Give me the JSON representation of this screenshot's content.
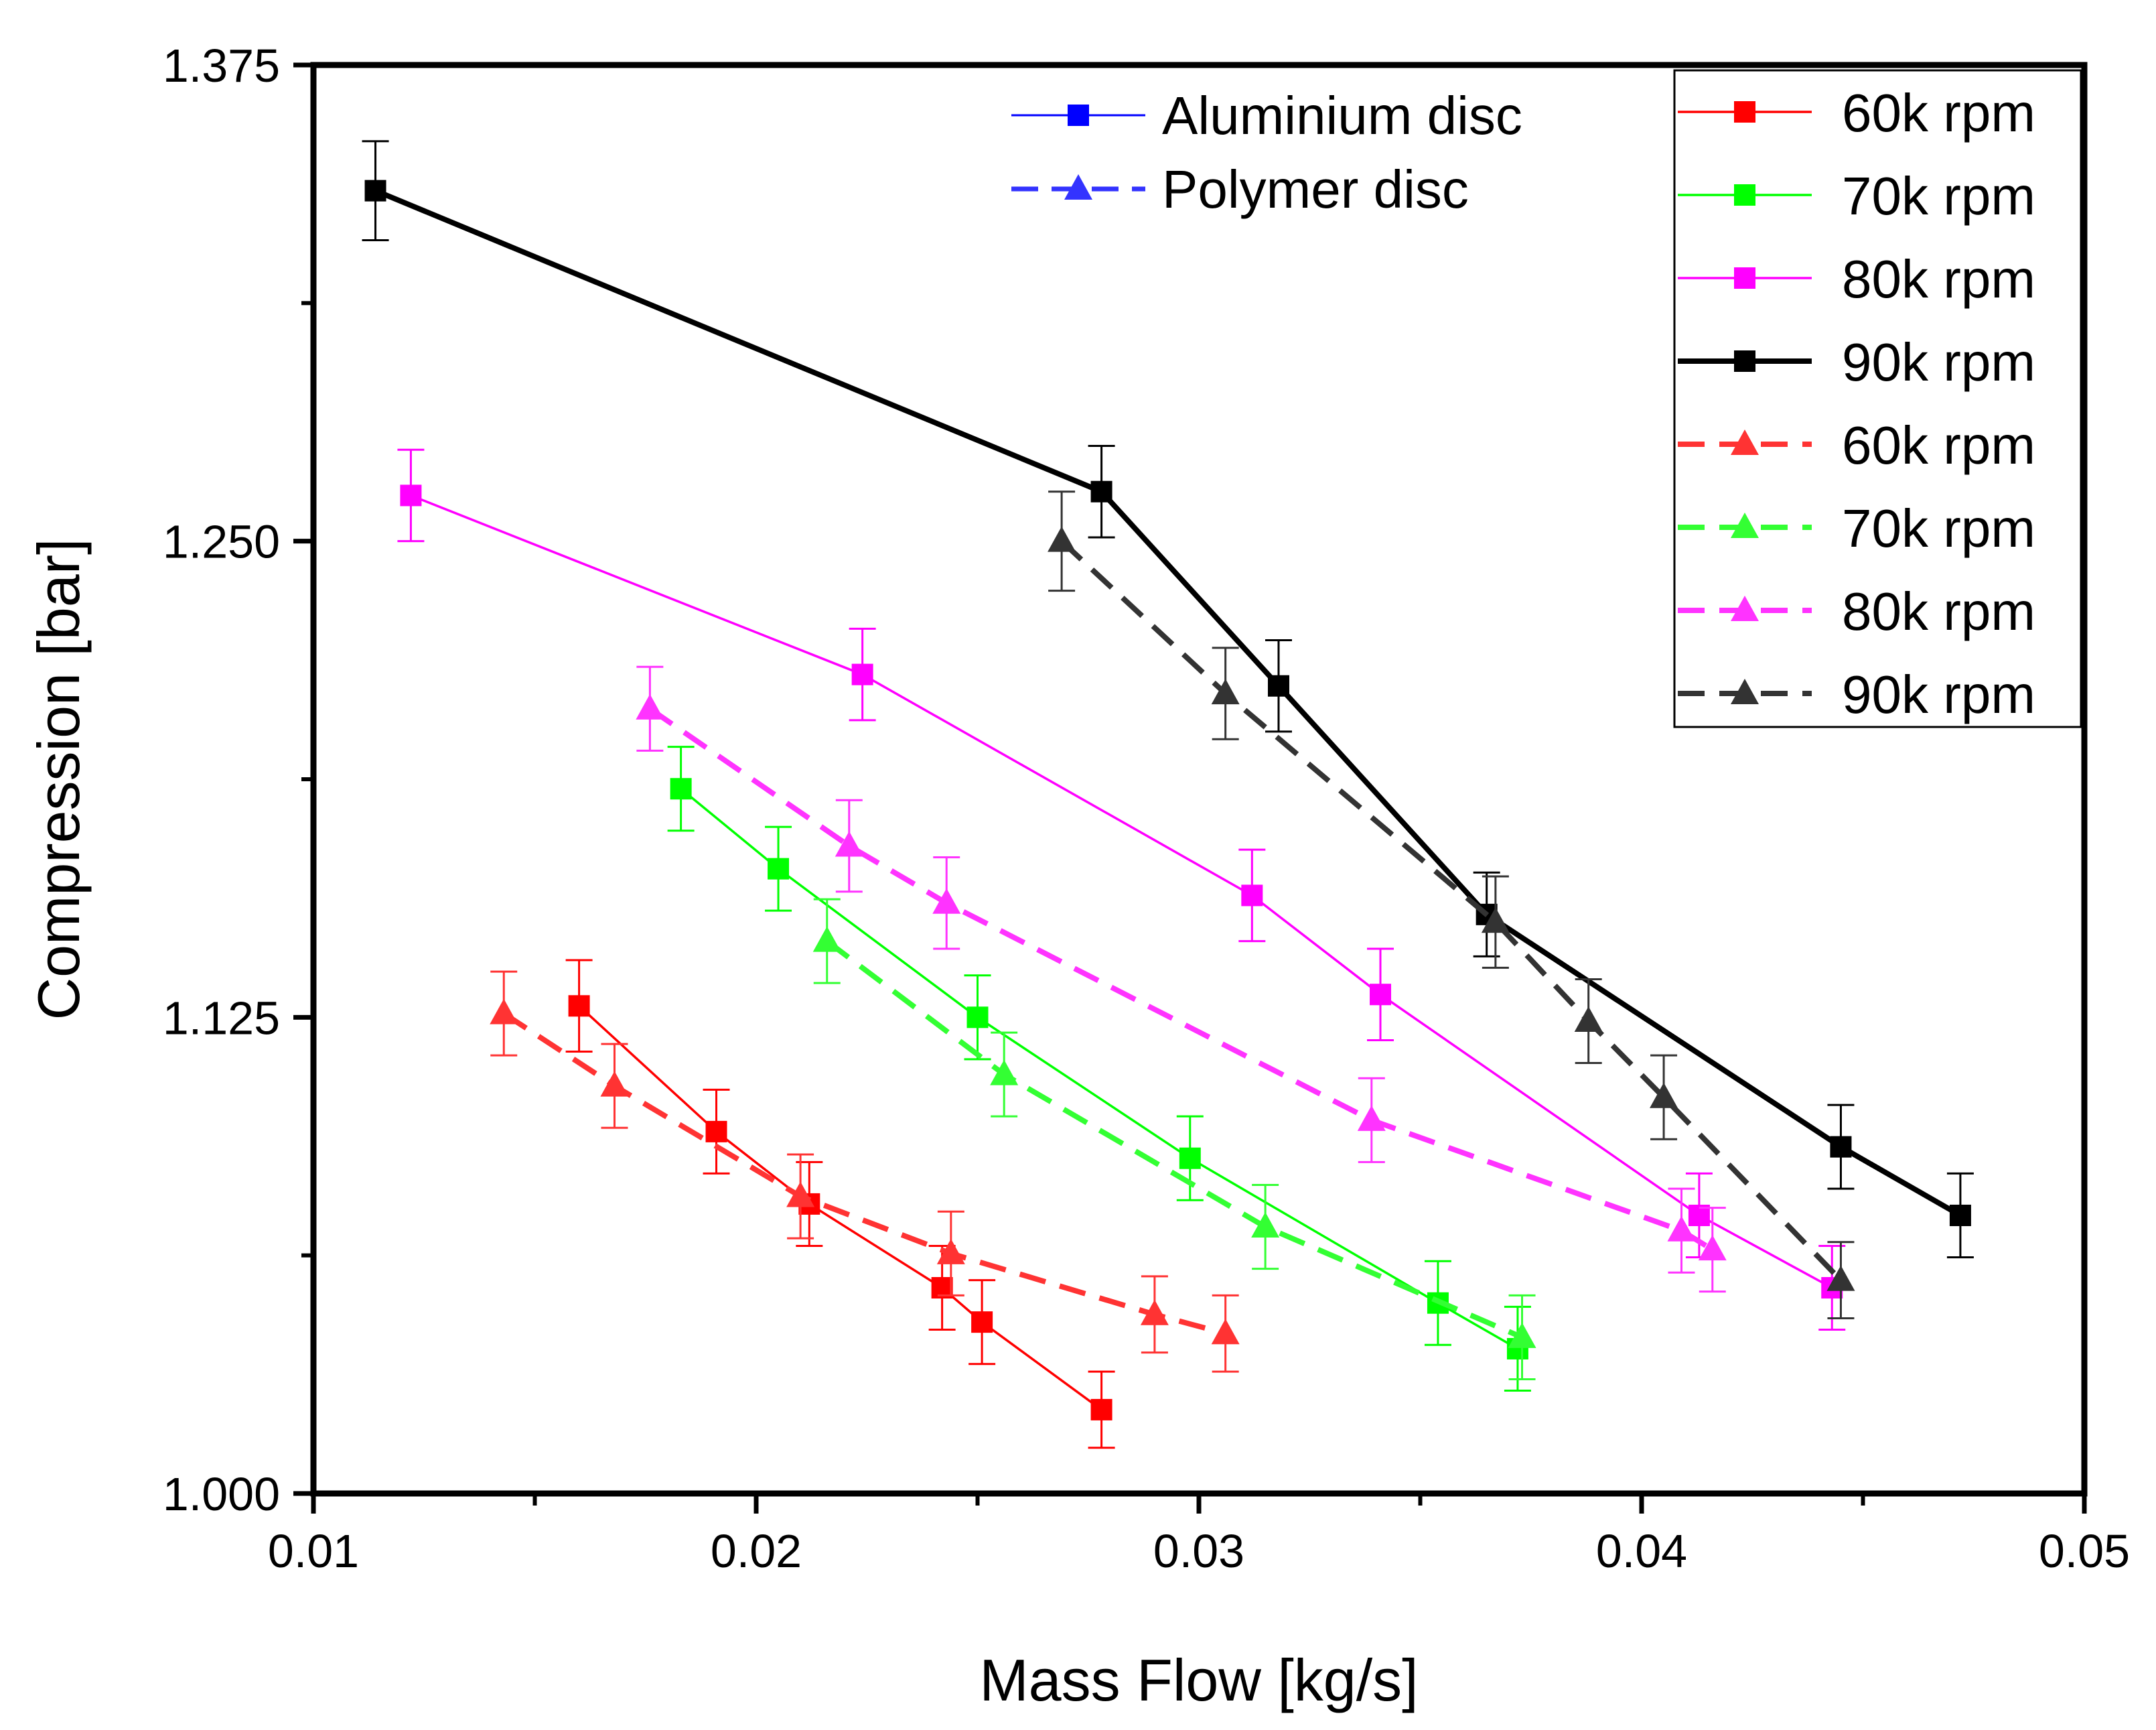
{
  "chart_data": {
    "type": "line",
    "title": "",
    "xlabel": "Mass Flow [kg/s]",
    "ylabel": "Compression [bar]",
    "xlim": [
      0.01,
      0.05
    ],
    "ylim": [
      1.0,
      1.375
    ],
    "xticks": [
      0.01,
      0.02,
      0.03,
      0.04,
      0.05
    ],
    "xtick_labels": [
      "0.01",
      "0.02",
      "0.03",
      "0.04",
      "0.05"
    ],
    "yticks": [
      1.0,
      1.125,
      1.25,
      1.375
    ],
    "ytick_labels": [
      "1.000",
      "1.125",
      "1.250",
      "1.375"
    ],
    "grid": false,
    "error_bars": true,
    "marker_legend": {
      "placement": "top-center",
      "entries": [
        {
          "label": "Aluminium disc",
          "color": "#0000ff",
          "marker": "square",
          "dash": "solid"
        },
        {
          "label": "Polymer disc",
          "color": "#3333ff",
          "marker": "triangle",
          "dash": "dashed"
        }
      ]
    },
    "series_legend": {
      "placement": "top-right",
      "entries": [
        "60k rpm",
        "70k rpm",
        "80k rpm",
        "90k rpm",
        "60k rpm",
        "70k rpm",
        "80k rpm",
        "90k rpm"
      ]
    },
    "series": [
      {
        "name": "60k rpm",
        "disc": "Aluminium disc",
        "color": "#ff0000",
        "marker": "square",
        "dash": "solid",
        "weight": "thin",
        "x": [
          0.016,
          0.0191,
          0.0212,
          0.0242,
          0.0251,
          0.0278
        ],
        "y": [
          1.128,
          1.095,
          1.076,
          1.054,
          1.045,
          1.022
        ],
        "err": [
          0.012,
          0.011,
          0.011,
          0.011,
          0.011,
          0.01
        ]
      },
      {
        "name": "70k rpm",
        "disc": "Aluminium disc",
        "color": "#00ff00",
        "marker": "square",
        "dash": "solid",
        "weight": "thin",
        "x": [
          0.0183,
          0.0205,
          0.025,
          0.0298,
          0.0354,
          0.0372
        ],
        "y": [
          1.185,
          1.164,
          1.125,
          1.088,
          1.05,
          1.038
        ],
        "err": [
          0.011,
          0.011,
          0.011,
          0.011,
          0.011,
          0.011
        ]
      },
      {
        "name": "80k rpm",
        "disc": "Aluminium disc",
        "color": "#ff00ff",
        "marker": "square",
        "dash": "solid",
        "weight": "thin",
        "x": [
          0.0122,
          0.0224,
          0.0312,
          0.0341,
          0.0413,
          0.0443
        ],
        "y": [
          1.262,
          1.215,
          1.157,
          1.131,
          1.073,
          1.054
        ],
        "err": [
          0.012,
          0.012,
          0.012,
          0.012,
          0.011,
          0.011
        ]
      },
      {
        "name": "90k rpm",
        "disc": "Aluminium disc",
        "color": "#000000",
        "marker": "square",
        "dash": "solid",
        "weight": "thick",
        "x": [
          0.0114,
          0.0278,
          0.0318,
          0.0365,
          0.0445,
          0.0472
        ],
        "y": [
          1.342,
          1.263,
          1.212,
          1.152,
          1.091,
          1.073
        ],
        "err": [
          0.013,
          0.012,
          0.012,
          0.011,
          0.011,
          0.011
        ]
      },
      {
        "name": "60k rpm",
        "disc": "Polymer disc",
        "color": "#ff3333",
        "marker": "triangle",
        "dash": "dashed",
        "weight": "thick",
        "x": [
          0.0143,
          0.0168,
          0.021,
          0.0244,
          0.029,
          0.0306
        ],
        "y": [
          1.126,
          1.107,
          1.078,
          1.063,
          1.047,
          1.042
        ],
        "err": [
          0.011,
          0.011,
          0.011,
          0.011,
          0.01,
          0.01
        ]
      },
      {
        "name": "70k rpm",
        "disc": "Polymer disc",
        "color": "#33ff33",
        "marker": "triangle",
        "dash": "dashed",
        "weight": "thick",
        "x": [
          0.0216,
          0.0256,
          0.0315,
          0.0373
        ],
        "y": [
          1.145,
          1.11,
          1.07,
          1.041
        ],
        "err": [
          0.011,
          0.011,
          0.011,
          0.011
        ]
      },
      {
        "name": "80k rpm",
        "disc": "Polymer disc",
        "color": "#ff33ff",
        "marker": "triangle",
        "dash": "dashed",
        "weight": "thick",
        "x": [
          0.0176,
          0.0221,
          0.0243,
          0.0339,
          0.0409,
          0.0416
        ],
        "y": [
          1.206,
          1.17,
          1.155,
          1.098,
          1.069,
          1.064
        ],
        "err": [
          0.011,
          0.012,
          0.012,
          0.011,
          0.011,
          0.011
        ]
      },
      {
        "name": "90k rpm",
        "disc": "Polymer disc",
        "color": "#333333",
        "marker": "triangle",
        "dash": "dashed",
        "weight": "thick",
        "x": [
          0.0269,
          0.0306,
          0.0367,
          0.0388,
          0.0405,
          0.0445
        ],
        "y": [
          1.25,
          1.21,
          1.15,
          1.124,
          1.104,
          1.056
        ],
        "err": [
          0.013,
          0.012,
          0.012,
          0.011,
          0.011,
          0.01
        ]
      }
    ]
  }
}
